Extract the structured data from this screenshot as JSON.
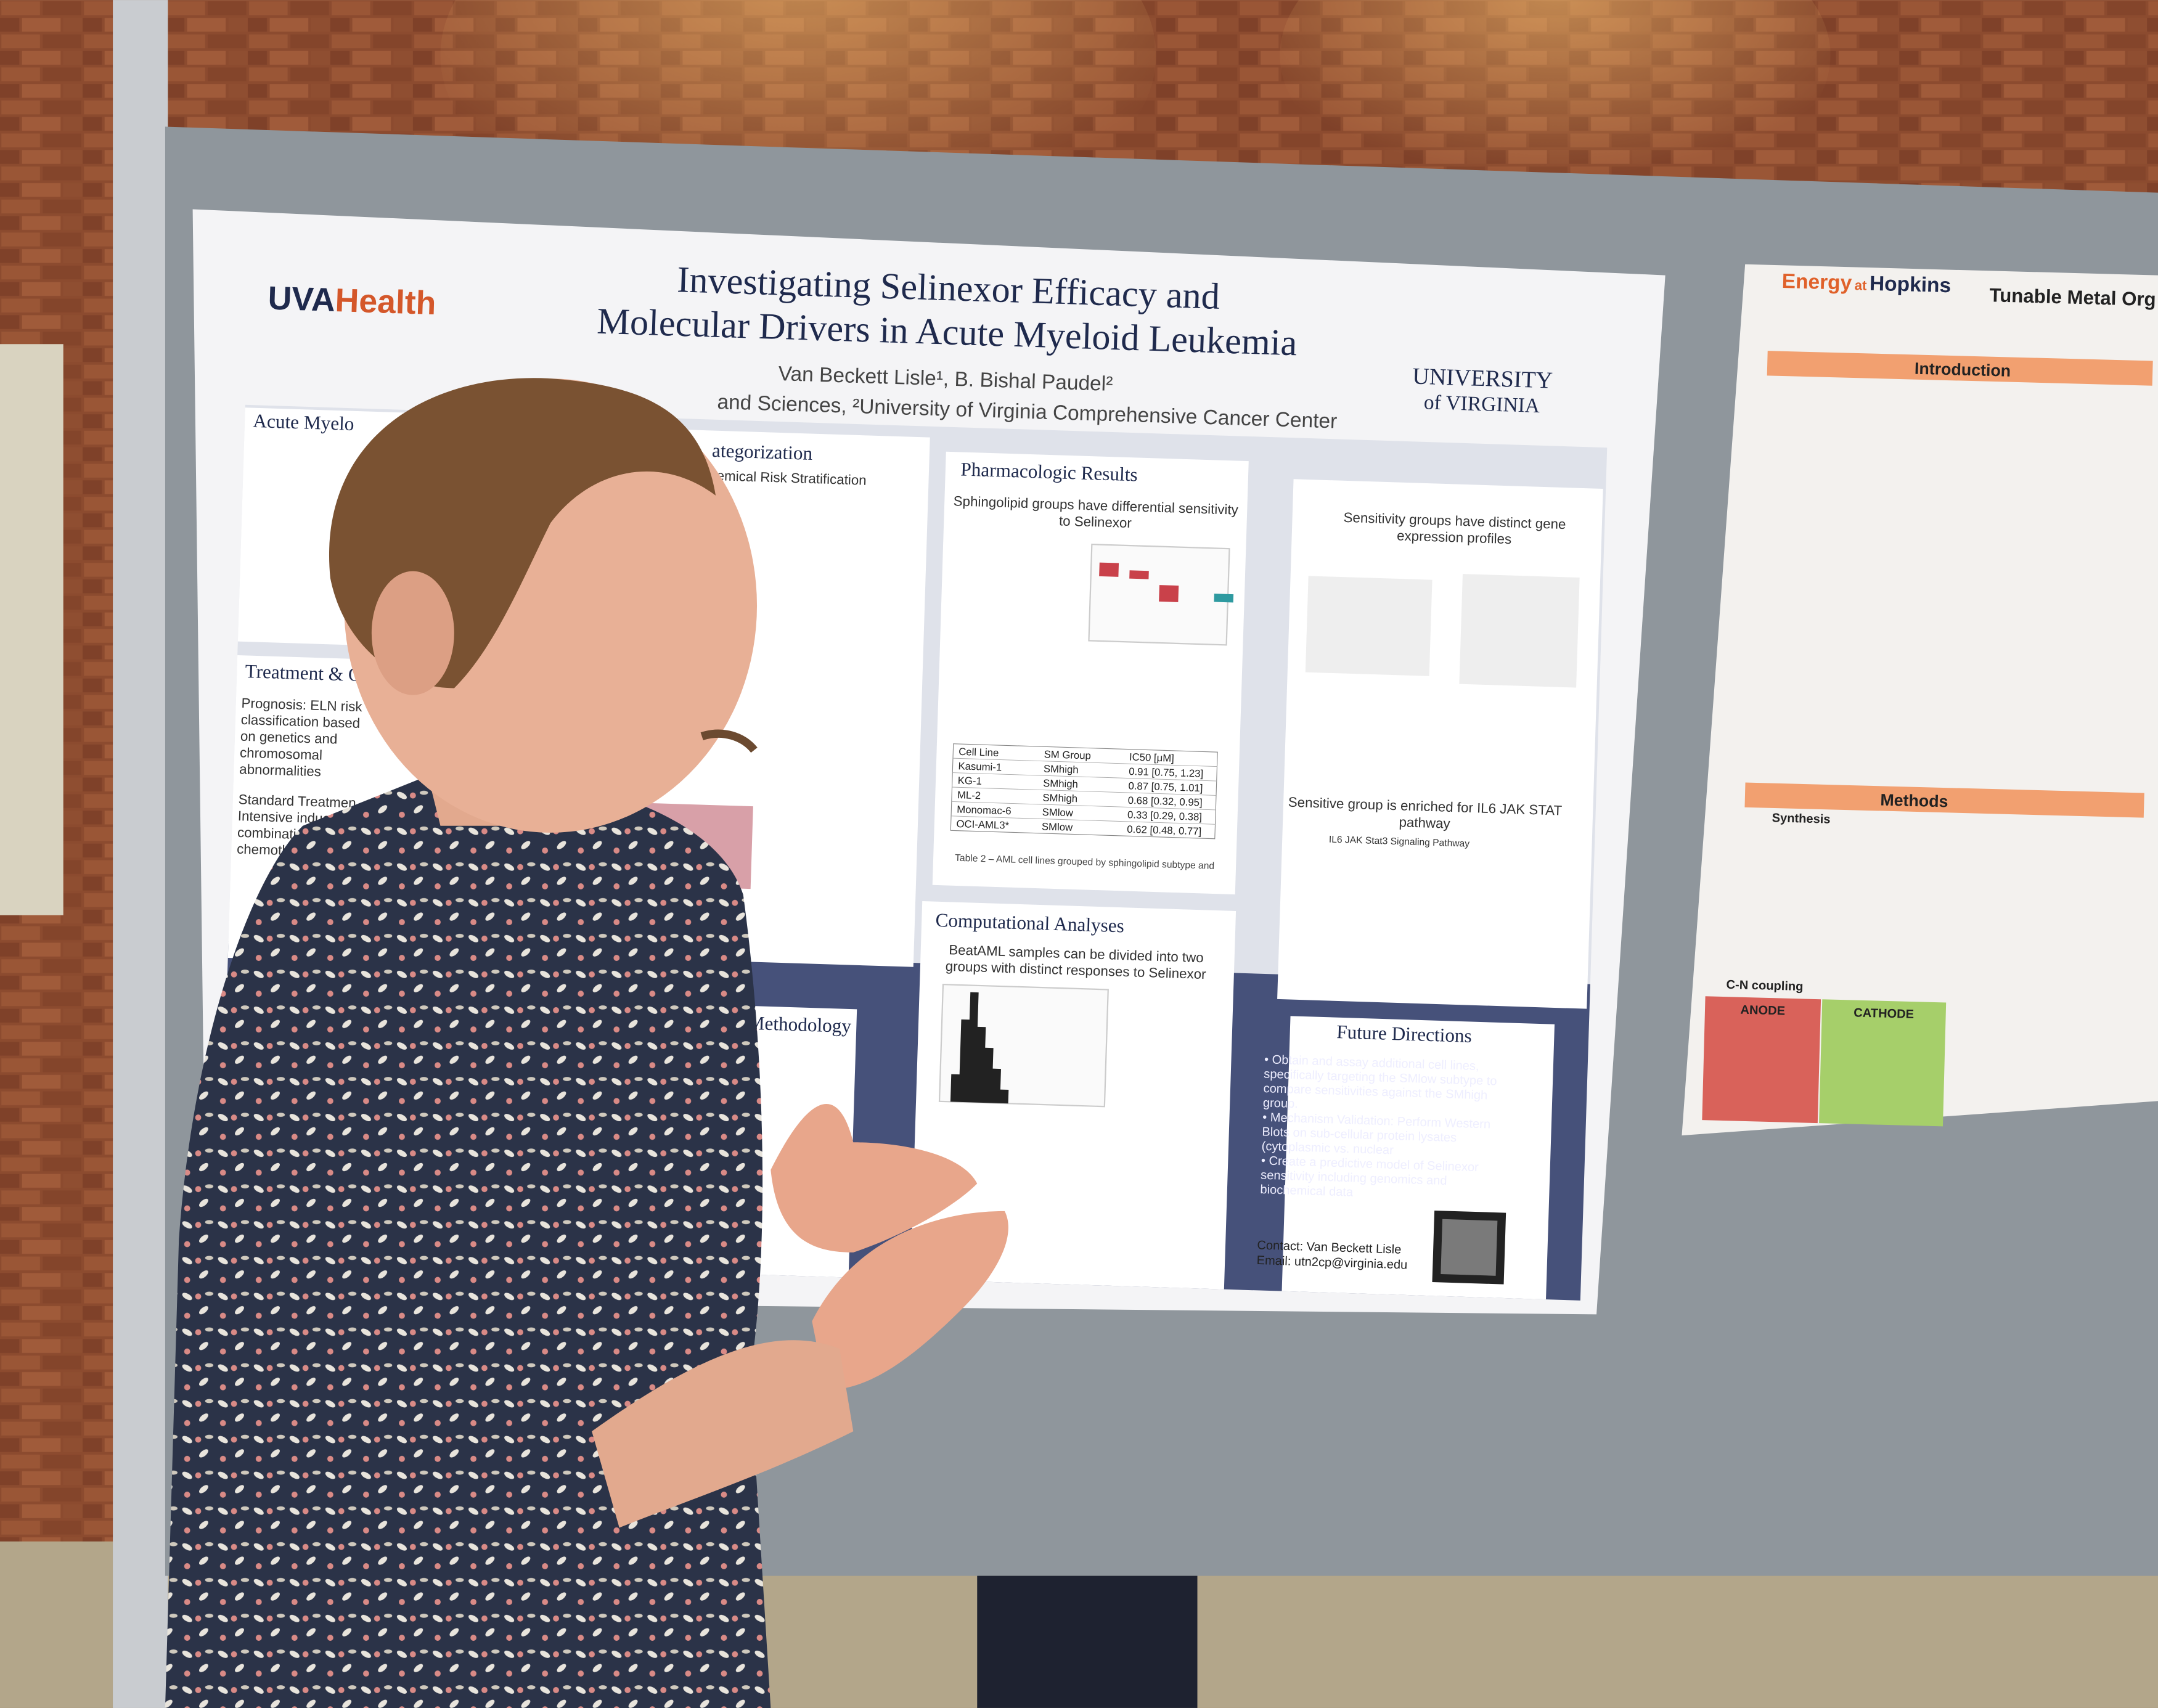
{
  "poster": {
    "logo_left": {
      "uva": "UVA",
      "health": "Health"
    },
    "title": [
      "Investigating Selinexor Efficacy and",
      "Molecular Drivers in Acute Myeloid Leukemia"
    ],
    "authors": "Van Beckett Lisle¹, B. Bishal Paudel²",
    "affiliations": "and Sciences, ²University of Virginia Comprehensive Cancer Center",
    "logo_right": [
      "UNIVERSITY",
      "of VIRGINIA"
    ],
    "left_sections": [
      "Acute Myelo",
      "Treatment & C",
      "Prognosis: ELN risk",
      "classification based",
      "on genetics and",
      "chromosomal",
      "abnormalities",
      "Standard Treatmen",
      "Intensive induct",
      "combination",
      "chemothera"
    ],
    "categorization": {
      "heading": "ategorization",
      "sub": "emical Risk Stratification"
    },
    "hypothesis": "esis & Methodology",
    "pharmacologic": {
      "heading": "Pharmacologic Results",
      "sub": [
        "Sphingolipid groups have differential sensitivity",
        "to Selinexor"
      ],
      "caption": "Table 2 – AML cell lines grouped by sphingolipid subtype and"
    },
    "table": {
      "header": [
        "Cell Line",
        "SM Group",
        "IC50 [μM]"
      ],
      "rows": [
        [
          "Kasumi-1",
          "SMhigh",
          "0.91 [0.75, 1.23]"
        ],
        [
          "KG-1",
          "SMhigh",
          "0.87 [0.75, 1.01]"
        ],
        [
          "ML-2",
          "SMhigh",
          "0.68 [0.32, 0.95]"
        ],
        [
          "Monomac-6",
          "SMlow",
          "0.33 [0.29, 0.38]"
        ],
        [
          "OCI-AML3*",
          "SMlow",
          "0.62 [0.48, 0.77]"
        ]
      ]
    },
    "computational": {
      "heading": "Computational Analyses",
      "sub": [
        "BeatAML samples can be divided into two",
        "groups with distinct responses to Selinexor"
      ]
    },
    "gene": {
      "heading": [
        "Sensitivity groups have distinct gene",
        "expression profiles"
      ],
      "enriched": [
        "Sensitive group is enriched for IL6 JAK STAT",
        "pathway"
      ],
      "plot_title": "IL6 JAK Stat3 Signaling Pathway"
    },
    "future": {
      "heading": "Future Directions",
      "bullets": [
        "• Obtain and assay additional cell lines,",
        "  specifically targeting the SMlow subtype to",
        "  compare sensitivities against the SMhigh",
        "  group.",
        "• Mechanism Validation: Perform Western",
        "  Blots on sub-cellular protein lysates",
        "  (cytoplasmic vs. nuclear",
        "• Create a predictive model of Selinexor",
        "  sensitivity including genomics and",
        "  biochemical data"
      ]
    },
    "contact": [
      "Contact: Van Beckett Lisle",
      "Email: utn2cp@virginia.edu"
    ]
  },
  "poster2": {
    "brand": {
      "energy": "Energy",
      "at": "at",
      "hopkins": "Hopkins"
    },
    "title": "Tunable Metal Org",
    "headings": [
      "Introduction",
      "Methods"
    ],
    "labels": [
      "Synthesis",
      "C-N coupling",
      "ANODE",
      "CATHODE"
    ]
  }
}
